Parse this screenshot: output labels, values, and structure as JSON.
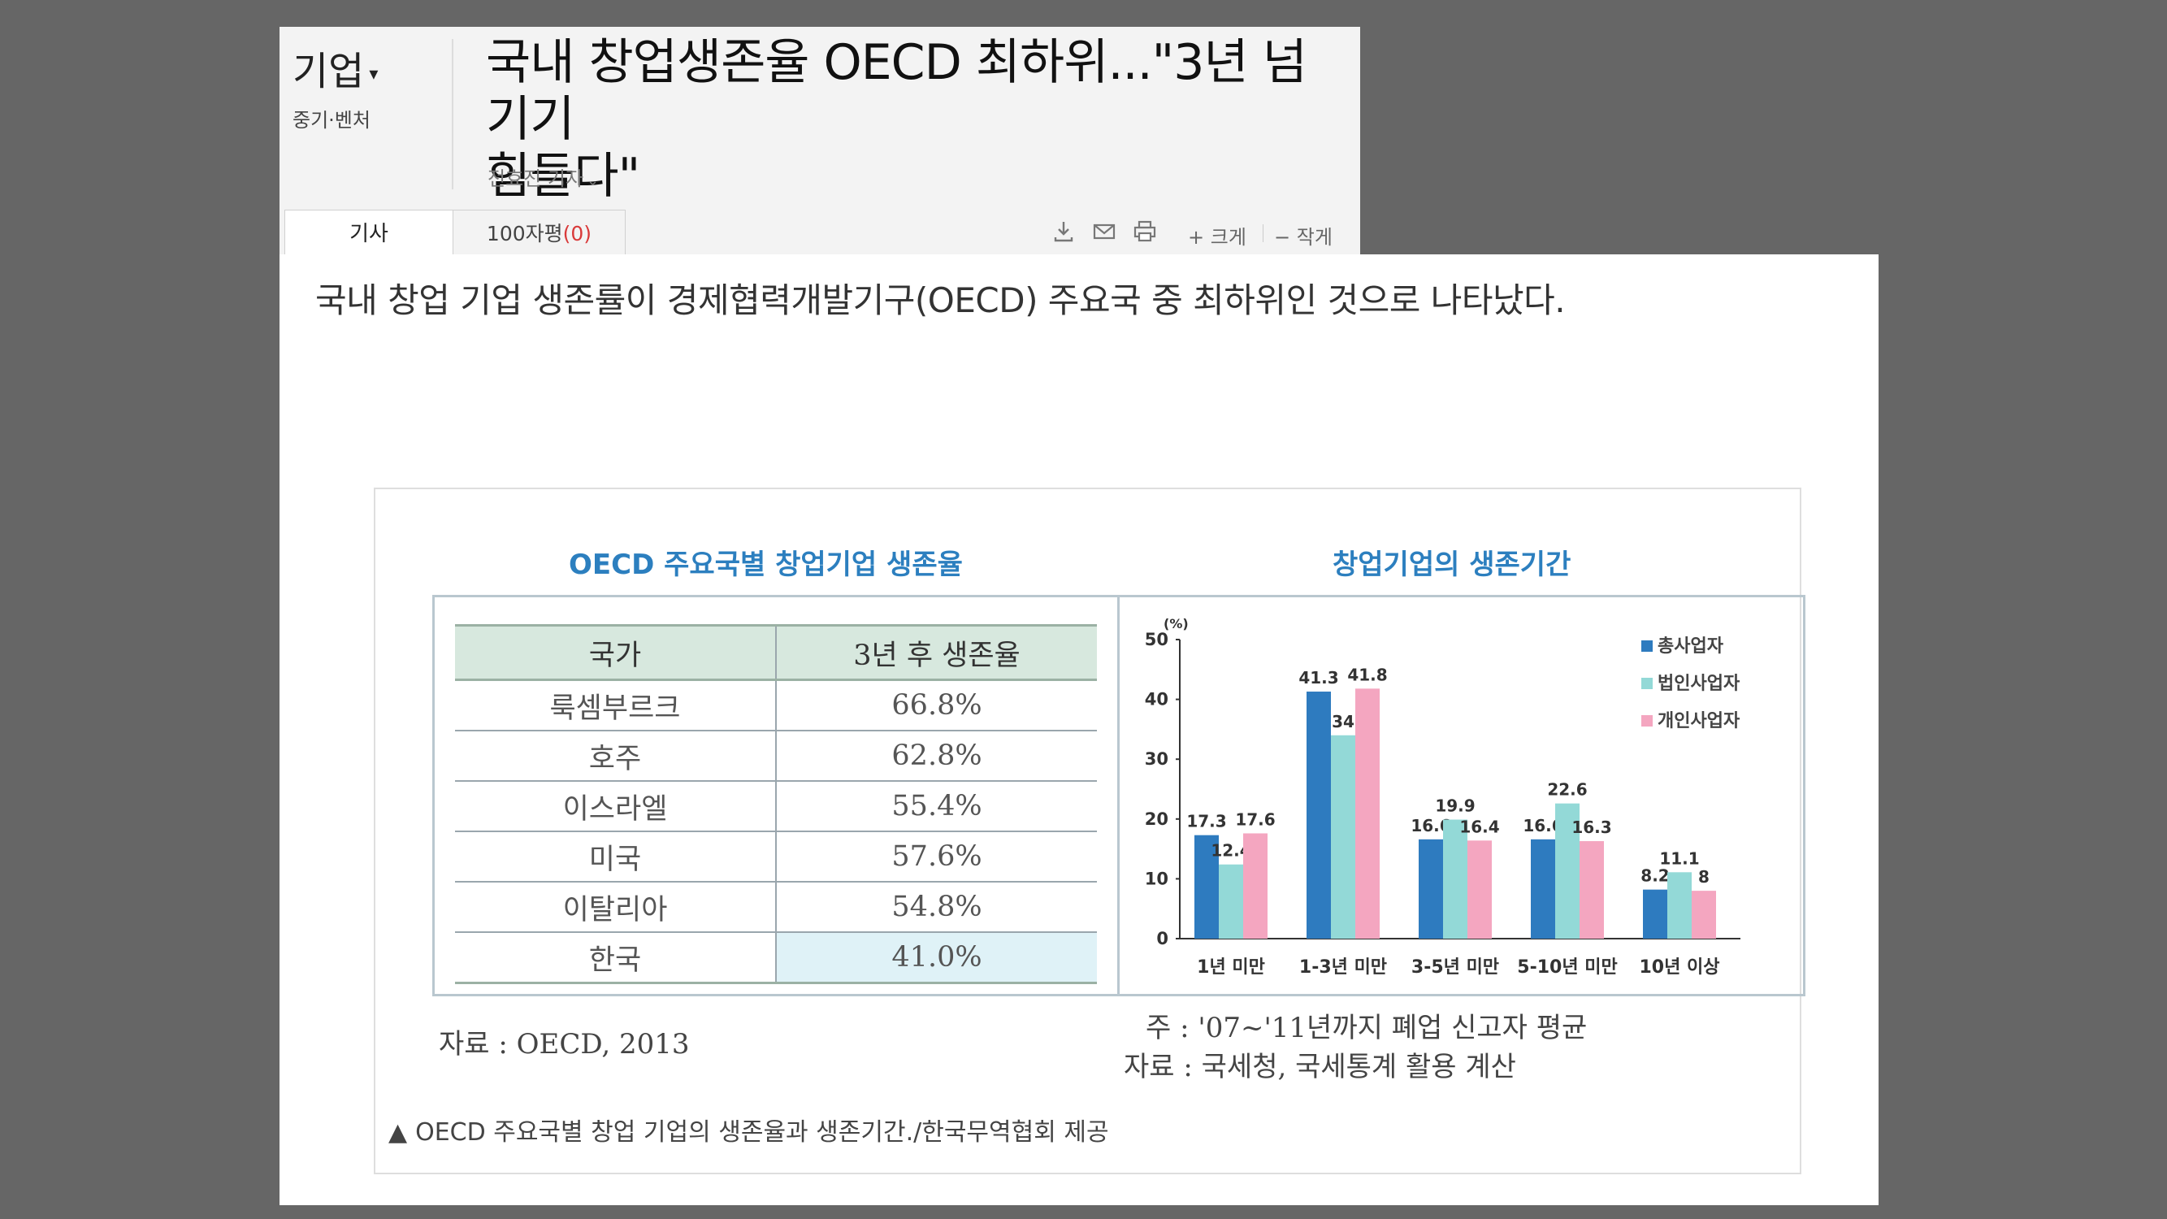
{
  "header": {
    "section": "기업",
    "subsection": "중기·벤처",
    "title_line1": "국내 창업생존율 OECD 최하위...\"3년 넘기기",
    "title_line2": "힘들다\"",
    "reporter": "전효진 기자"
  },
  "tabs": [
    {
      "label": "기사"
    },
    {
      "label": "100자평",
      "count": "(0)"
    }
  ],
  "tools": {
    "icons": [
      "download-icon",
      "mail-icon",
      "print-icon"
    ],
    "font_larger": "+ 크게",
    "font_smaller": "− 작게"
  },
  "article": {
    "lead": "국내 창업 기업 생존률이 경제협력개발기구(OECD) 주요국 중 최하위인 것으로 나타났다."
  },
  "infographic": {
    "left_title": "OECD 주요국별 창업기업 생존율",
    "right_title": "창업기업의 생존기간",
    "table": {
      "headers": [
        "국가",
        "3년 후 생존율"
      ],
      "rows": [
        [
          "룩셈부르크",
          "66.8%"
        ],
        [
          "호주",
          "62.8%"
        ],
        [
          "이스라엘",
          "55.4%"
        ],
        [
          "미국",
          "57.6%"
        ],
        [
          "이탈리아",
          "54.8%"
        ],
        [
          "한국",
          "41.0%"
        ]
      ],
      "highlight_row": 5
    },
    "source_left": "자료 : OECD, 2013",
    "note_right": "주 : '07~'11년까지 폐업 신고자 평균",
    "source_right": "자료 : 국세청, 국세통계 활용 계산",
    "caption": "OECD 주요국별 창업 기업의 생존율과 생존기간./한국무역협회 제공"
  },
  "chart_data": {
    "type": "bar",
    "title": "창업기업의 생존기간",
    "ylabel": "(%)",
    "ylim": [
      0,
      50
    ],
    "yticks": [
      0,
      10,
      20,
      30,
      40,
      50
    ],
    "categories": [
      "1년 미만",
      "1-3년 미만",
      "3-5년 미만",
      "5-10년 미만",
      "10년 이상"
    ],
    "series": [
      {
        "name": "총사업자",
        "color": "#2e7bbf",
        "values": [
          17.3,
          41.3,
          16.6,
          16.6,
          8.2
        ]
      },
      {
        "name": "법인사업자",
        "color": "#93d9d7",
        "values": [
          12.4,
          34,
          19.9,
          22.6,
          11.1
        ]
      },
      {
        "name": "개인사업자",
        "color": "#f4a6c0",
        "values": [
          17.6,
          41.8,
          16.4,
          16.3,
          8
        ]
      }
    ],
    "legend": "top-right",
    "grid": false
  }
}
